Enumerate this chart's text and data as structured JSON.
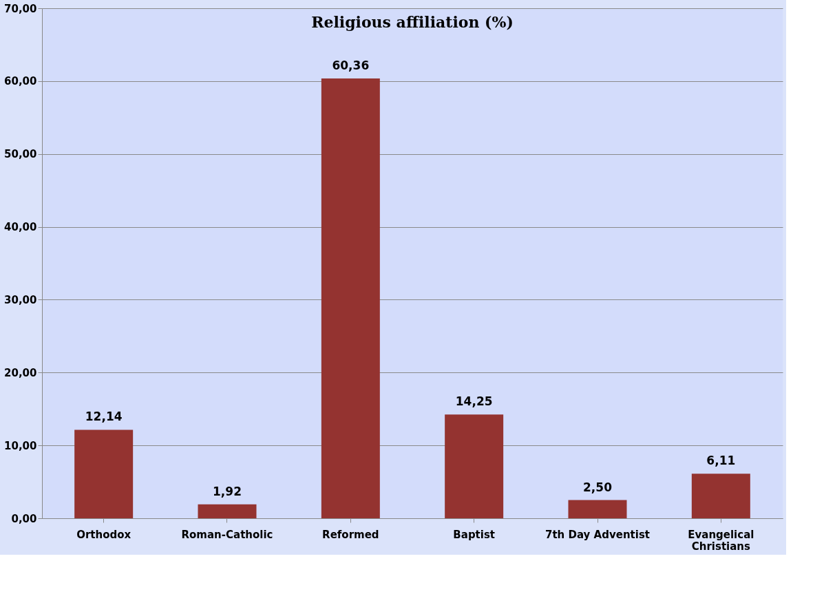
{
  "chart_data": {
    "type": "bar",
    "title": "Religious affiliation (%)",
    "categories": [
      "Orthodox",
      "Roman-Catholic",
      "Reformed",
      "Baptist",
      "7th Day Adventist",
      "Evangelical Christians"
    ],
    "values": [
      12.14,
      1.92,
      60.36,
      14.25,
      2.5,
      6.11
    ],
    "value_labels": [
      "12,14",
      "1,92",
      "60,36",
      "14,25",
      "2,50",
      "6,11"
    ],
    "color": "#943330",
    "ylim": [
      0,
      70
    ],
    "yticks": [
      {
        "value": 0,
        "label": "0,00"
      },
      {
        "value": 10,
        "label": "10,00"
      },
      {
        "value": 20,
        "label": "20,00"
      },
      {
        "value": 30,
        "label": "30,00"
      },
      {
        "value": 40,
        "label": "40,00"
      },
      {
        "value": 50,
        "label": "50,00"
      },
      {
        "value": 60,
        "label": "60,00"
      },
      {
        "value": 70,
        "label": "70,00"
      }
    ],
    "grid": "y"
  }
}
